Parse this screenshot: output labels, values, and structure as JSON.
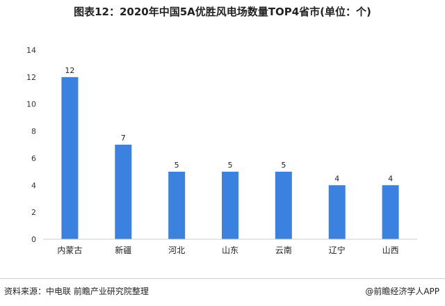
{
  "title": "图表12：2020年中国5A优胜风电场数量TOP4省市(单位：个)",
  "source": "资料来源：中电联 前瞻产业研究院整理",
  "credit": "@前瞻经济学人APP",
  "colors": {
    "bar": "#3b82e0",
    "axis": "#cccccc"
  },
  "chart_data": {
    "type": "bar",
    "title": "图表12：2020年中国5A优胜风电场数量TOP4省市(单位：个)",
    "xlabel": "",
    "ylabel": "",
    "categories": [
      "内蒙古",
      "新疆",
      "河北",
      "山东",
      "云南",
      "辽宁",
      "山西"
    ],
    "values": [
      12,
      7,
      5,
      5,
      5,
      4,
      4
    ],
    "ylim": [
      0,
      14
    ],
    "yticks": [
      0,
      2,
      4,
      6,
      8,
      10,
      12,
      14
    ],
    "grid": false,
    "legend": "none",
    "data_labels": true
  }
}
